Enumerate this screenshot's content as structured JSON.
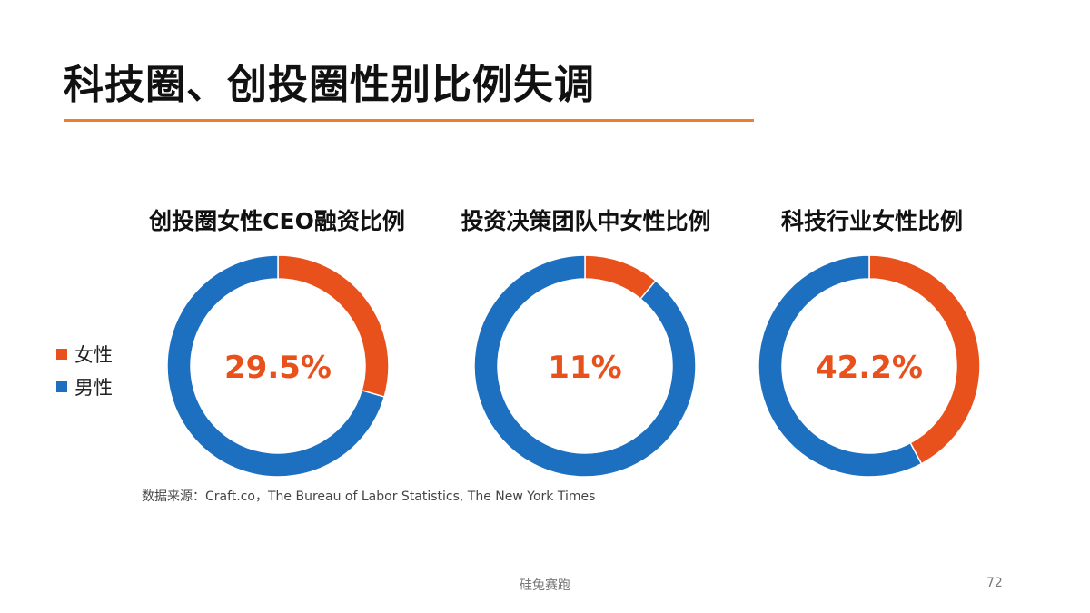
{
  "slide": {
    "title": "科技圈、创投圈性别比例失调",
    "source": "数据来源：Craft.co，The Bureau of Labor Statistics, The New York Times",
    "footer": "硅兔赛跑",
    "page_number": "72"
  },
  "colors": {
    "female": "#E8501C",
    "male": "#1D6FC0",
    "accent_rule": "#ED7D31"
  },
  "legend": [
    {
      "label": "女性",
      "color": "#E8501C"
    },
    {
      "label": "男性",
      "color": "#1D6FC0"
    }
  ],
  "chart_data": [
    {
      "type": "pie",
      "title": "创投圈女性CEO融资比例",
      "categories": [
        "女性",
        "男性"
      ],
      "values": [
        29.5,
        70.5
      ],
      "center_label": "29.5%"
    },
    {
      "type": "pie",
      "title": "投资决策团队中女性比例",
      "categories": [
        "女性",
        "男性"
      ],
      "values": [
        11,
        89
      ],
      "center_label": "11%"
    },
    {
      "type": "pie",
      "title": "科技行业女性比例",
      "categories": [
        "女性",
        "男性"
      ],
      "values": [
        42.2,
        57.8
      ],
      "center_label": "42.2%"
    }
  ]
}
